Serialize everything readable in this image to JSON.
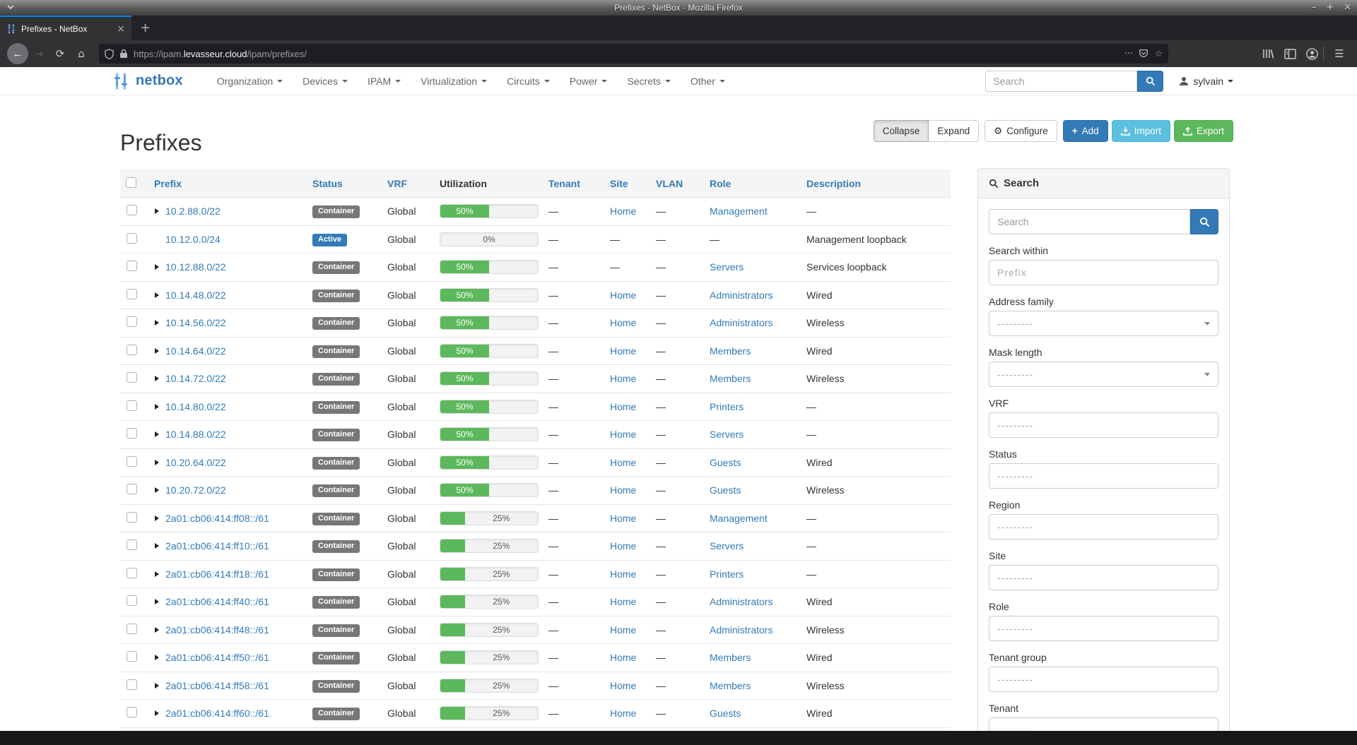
{
  "window": {
    "title": "Prefixes - NetBox - Mozilla Firefox",
    "controls": [
      "minimize",
      "maximize",
      "close"
    ]
  },
  "browser": {
    "tab_title": "Prefixes - NetBox",
    "new_tab_label": "+",
    "url_scheme": "https://ipam.",
    "url_domain": "levasseur.cloud",
    "url_path": "/ipam/prefixes/"
  },
  "navbar": {
    "brand": "netbox",
    "items": [
      "Organization",
      "Devices",
      "IPAM",
      "Virtualization",
      "Circuits",
      "Power",
      "Secrets",
      "Other"
    ],
    "search_placeholder": "Search",
    "user": "sylvain"
  },
  "page_header": {
    "title": "Prefixes",
    "collapse": "Collapse",
    "expand": "Expand",
    "configure": "Configure",
    "add": "Add",
    "import": "Import",
    "export": "Export"
  },
  "table": {
    "columns": [
      "Prefix",
      "Status",
      "VRF",
      "Utilization",
      "Tenant",
      "Site",
      "VLAN",
      "Role",
      "Description"
    ],
    "rows": [
      {
        "prefix": "10.2.88.0/22",
        "expandable": true,
        "status": "Container",
        "vrf": "Global",
        "utilization": 50,
        "tenant": "—",
        "site": "Home",
        "vlan": "—",
        "role": "Management",
        "description": "—"
      },
      {
        "prefix": "10.12.0.0/24",
        "expandable": false,
        "status": "Active",
        "vrf": "Global",
        "utilization": 0,
        "tenant": "—",
        "site": "—",
        "vlan": "—",
        "role": "—",
        "description": "Management loopback"
      },
      {
        "prefix": "10.12.88.0/22",
        "expandable": true,
        "status": "Container",
        "vrf": "Global",
        "utilization": 50,
        "tenant": "—",
        "site": "—",
        "vlan": "—",
        "role": "Servers",
        "description": "Services loopback"
      },
      {
        "prefix": "10.14.48.0/22",
        "expandable": true,
        "status": "Container",
        "vrf": "Global",
        "utilization": 50,
        "tenant": "—",
        "site": "Home",
        "vlan": "—",
        "role": "Administrators",
        "description": "Wired"
      },
      {
        "prefix": "10.14.56.0/22",
        "expandable": true,
        "status": "Container",
        "vrf": "Global",
        "utilization": 50,
        "tenant": "—",
        "site": "Home",
        "vlan": "—",
        "role": "Administrators",
        "description": "Wireless"
      },
      {
        "prefix": "10.14.64.0/22",
        "expandable": true,
        "status": "Container",
        "vrf": "Global",
        "utilization": 50,
        "tenant": "—",
        "site": "Home",
        "vlan": "—",
        "role": "Members",
        "description": "Wired"
      },
      {
        "prefix": "10.14.72.0/22",
        "expandable": true,
        "status": "Container",
        "vrf": "Global",
        "utilization": 50,
        "tenant": "—",
        "site": "Home",
        "vlan": "—",
        "role": "Members",
        "description": "Wireless"
      },
      {
        "prefix": "10.14.80.0/22",
        "expandable": true,
        "status": "Container",
        "vrf": "Global",
        "utilization": 50,
        "tenant": "—",
        "site": "Home",
        "vlan": "—",
        "role": "Printers",
        "description": "—"
      },
      {
        "prefix": "10.14.88.0/22",
        "expandable": true,
        "status": "Container",
        "vrf": "Global",
        "utilization": 50,
        "tenant": "—",
        "site": "Home",
        "vlan": "—",
        "role": "Servers",
        "description": "—"
      },
      {
        "prefix": "10.20.64.0/22",
        "expandable": true,
        "status": "Container",
        "vrf": "Global",
        "utilization": 50,
        "tenant": "—",
        "site": "Home",
        "vlan": "—",
        "role": "Guests",
        "description": "Wired"
      },
      {
        "prefix": "10.20.72.0/22",
        "expandable": true,
        "status": "Container",
        "vrf": "Global",
        "utilization": 50,
        "tenant": "—",
        "site": "Home",
        "vlan": "—",
        "role": "Guests",
        "description": "Wireless"
      },
      {
        "prefix": "2a01:cb06:414:ff08::/61",
        "expandable": true,
        "status": "Container",
        "vrf": "Global",
        "utilization": 25,
        "tenant": "—",
        "site": "Home",
        "vlan": "—",
        "role": "Management",
        "description": "—"
      },
      {
        "prefix": "2a01:cb06:414:ff10::/61",
        "expandable": true,
        "status": "Container",
        "vrf": "Global",
        "utilization": 25,
        "tenant": "—",
        "site": "Home",
        "vlan": "—",
        "role": "Servers",
        "description": "—"
      },
      {
        "prefix": "2a01:cb06:414:ff18::/61",
        "expandable": true,
        "status": "Container",
        "vrf": "Global",
        "utilization": 25,
        "tenant": "—",
        "site": "Home",
        "vlan": "—",
        "role": "Printers",
        "description": "—"
      },
      {
        "prefix": "2a01:cb06:414:ff40::/61",
        "expandable": true,
        "status": "Container",
        "vrf": "Global",
        "utilization": 25,
        "tenant": "—",
        "site": "Home",
        "vlan": "—",
        "role": "Administrators",
        "description": "Wired"
      },
      {
        "prefix": "2a01:cb06:414:ff48::/61",
        "expandable": true,
        "status": "Container",
        "vrf": "Global",
        "utilization": 25,
        "tenant": "—",
        "site": "Home",
        "vlan": "—",
        "role": "Administrators",
        "description": "Wireless"
      },
      {
        "prefix": "2a01:cb06:414:ff50::/61",
        "expandable": true,
        "status": "Container",
        "vrf": "Global",
        "utilization": 25,
        "tenant": "—",
        "site": "Home",
        "vlan": "—",
        "role": "Members",
        "description": "Wired"
      },
      {
        "prefix": "2a01:cb06:414:ff58::/61",
        "expandable": true,
        "status": "Container",
        "vrf": "Global",
        "utilization": 25,
        "tenant": "—",
        "site": "Home",
        "vlan": "—",
        "role": "Members",
        "description": "Wireless"
      },
      {
        "prefix": "2a01:cb06:414:ff60::/61",
        "expandable": true,
        "status": "Container",
        "vrf": "Global",
        "utilization": 25,
        "tenant": "—",
        "site": "Home",
        "vlan": "—",
        "role": "Guests",
        "description": "Wired"
      }
    ]
  },
  "sidebar": {
    "title": "Search",
    "search_placeholder": "Search",
    "fields": [
      {
        "label": "Search within",
        "placeholder": "Prefix",
        "widget": "text"
      },
      {
        "label": "Address family",
        "placeholder": "---------",
        "widget": "select"
      },
      {
        "label": "Mask length",
        "placeholder": "---------",
        "widget": "select"
      },
      {
        "label": "VRF",
        "placeholder": "---------",
        "widget": "select2"
      },
      {
        "label": "Status",
        "placeholder": "---------",
        "widget": "select2"
      },
      {
        "label": "Region",
        "placeholder": "---------",
        "widget": "select2"
      },
      {
        "label": "Site",
        "placeholder": "---------",
        "widget": "select2"
      },
      {
        "label": "Role",
        "placeholder": "---------",
        "widget": "select2"
      },
      {
        "label": "Tenant group",
        "placeholder": "---------",
        "widget": "select2"
      },
      {
        "label": "Tenant",
        "placeholder": "---------",
        "widget": "select2"
      }
    ]
  },
  "colors": {
    "link": "#337ab7",
    "status_container": "#777777",
    "status_active": "#337ab7",
    "progress_green": "#5cb85c",
    "btn_add": "#337ab7",
    "btn_import": "#5bc0de",
    "btn_export": "#5cb85c",
    "tab_accent": "#0a84ff"
  }
}
